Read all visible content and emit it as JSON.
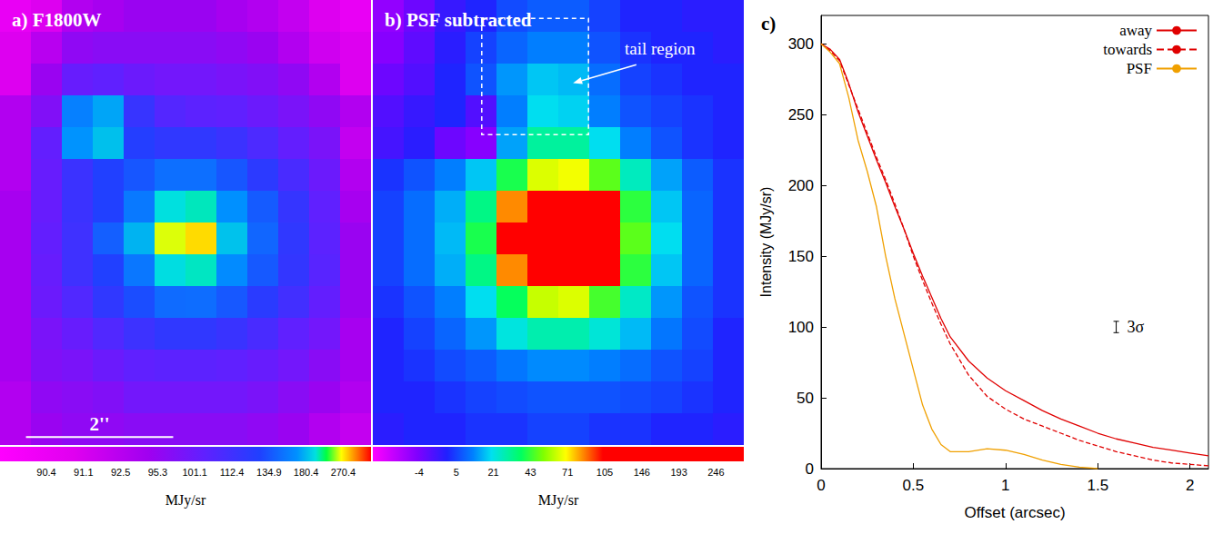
{
  "chart_data": [
    {
      "type": "heatmap",
      "title": "a) F1800W",
      "xlim": [
        0,
        5.04
      ],
      "ylim": [
        0,
        6.05
      ],
      "tick_labels": false,
      "cells": [
        [
          90.5,
          91,
          93,
          94,
          95,
          95,
          95,
          94,
          93,
          92,
          91,
          90.5
        ],
        [
          91,
          92.5,
          96,
          97,
          97,
          97,
          97,
          96,
          95,
          93,
          91.5,
          91
        ],
        [
          91,
          95,
          102,
          104,
          101,
          100,
          100,
          99,
          98,
          96,
          93,
          91
        ],
        [
          93,
          98,
          160,
          175,
          117,
          107,
          105,
          104,
          101,
          99,
          96,
          93
        ],
        [
          93,
          103,
          170,
          185,
          127,
          121,
          121,
          115,
          109,
          103,
          99,
          92
        ],
        [
          93,
          102,
          115,
          129,
          136,
          150,
          150,
          136,
          123,
          110,
          101,
          93
        ],
        [
          94,
          102,
          115,
          129,
          156,
          203,
          209,
          169,
          139,
          118,
          104,
          94
        ],
        [
          94,
          103,
          113,
          141,
          179,
          261,
          276,
          186,
          145,
          121,
          105,
          95
        ],
        [
          94,
          102,
          113,
          129,
          155,
          201,
          208,
          166,
          138,
          119,
          106,
          95
        ],
        [
          94,
          101,
          108,
          121,
          133,
          148,
          149,
          137,
          124,
          112,
          103,
          95
        ],
        [
          94,
          99,
          102,
          108,
          114,
          121,
          121,
          116,
          110,
          104,
          100,
          94
        ],
        [
          94,
          98,
          99,
          101,
          104,
          105,
          105,
          104,
          102,
          100,
          97,
          94
        ],
        [
          93,
          96,
          97,
          98,
          100,
          100,
          100,
          100,
          99,
          97,
          95,
          93
        ],
        [
          93,
          95,
          96,
          96,
          97,
          97,
          97,
          97,
          96,
          95,
          93,
          92
        ]
      ],
      "colorbar": {
        "label": "MJy/sr",
        "range": [
          89.5,
          338
        ],
        "ticks": [
          90.4,
          91.1,
          92.5,
          95.3,
          101.1,
          112.4,
          134.9,
          180.4,
          270.4
        ]
      },
      "scale_bar": {
        "label": "2''",
        "length": 2
      }
    },
    {
      "type": "heatmap",
      "title": "b) PSF subtracted",
      "xlim": [
        0,
        5.04
      ],
      "ylim": [
        0,
        6.05
      ],
      "tick_labels": false,
      "cells": [
        [
          -6,
          -3,
          1,
          3,
          6,
          8,
          8,
          5,
          3,
          3,
          2,
          2
        ],
        [
          -5,
          -2,
          2,
          5,
          9,
          12,
          12,
          7,
          4,
          3,
          3,
          2
        ],
        [
          -3,
          -1,
          3,
          7,
          14,
          18,
          17,
          10,
          5,
          4,
          3,
          3
        ],
        [
          -1,
          1,
          3,
          -1,
          12,
          20,
          19,
          12,
          7,
          5,
          4,
          3
        ],
        [
          0,
          2,
          -3,
          -5,
          15,
          30,
          30,
          20,
          12,
          7,
          4,
          3
        ],
        [
          4,
          7,
          12,
          18,
          40,
          65,
          68,
          48,
          26,
          15,
          8,
          4
        ],
        [
          5,
          10,
          16,
          33,
          85,
          175,
          195,
          105,
          42,
          18,
          9,
          4
        ],
        [
          5,
          10,
          17,
          40,
          115,
          280,
          300,
          140,
          48,
          20,
          9,
          4
        ],
        [
          5,
          10,
          16,
          33,
          85,
          175,
          195,
          105,
          42,
          18,
          9,
          4
        ],
        [
          4,
          7,
          12,
          20,
          38,
          62,
          65,
          45,
          25,
          14,
          7,
          4
        ],
        [
          3,
          5,
          9,
          14,
          22,
          28,
          28,
          23,
          17,
          11,
          6,
          3
        ],
        [
          3,
          4,
          6,
          8,
          11,
          13,
          13,
          12,
          10,
          7,
          5,
          3
        ],
        [
          3,
          3,
          4,
          5,
          6,
          7,
          7,
          7,
          6,
          5,
          4,
          3
        ],
        [
          2,
          3,
          3,
          4,
          4,
          5,
          5,
          4,
          4,
          3,
          3,
          2
        ]
      ],
      "colorbar": {
        "label": "MJy/sr",
        "range": [
          -15,
          300
        ],
        "ticks": [
          -4,
          5,
          21,
          43,
          71,
          105,
          146,
          193,
          246
        ]
      },
      "annotations": [
        {
          "text": "tail region"
        }
      ]
    },
    {
      "type": "line",
      "title": "c)",
      "xlabel": "Offset (arcsec)",
      "ylabel": "Intensity (MJy/sr)",
      "xlim": [
        0,
        2.1
      ],
      "ylim": [
        0,
        320
      ],
      "xticks": [
        0,
        0.5,
        1,
        1.5,
        2
      ],
      "yticks": [
        0,
        50,
        100,
        150,
        200,
        250,
        300
      ],
      "grid": false,
      "legend": "upper right",
      "x": [
        0,
        0.05,
        0.1,
        0.15,
        0.2,
        0.25,
        0.3,
        0.35,
        0.4,
        0.45,
        0.5,
        0.55,
        0.6,
        0.65,
        0.7,
        0.8,
        0.9,
        1.0,
        1.1,
        1.2,
        1.3,
        1.4,
        1.5,
        1.6,
        1.7,
        1.8,
        1.9,
        2.0,
        2.1
      ],
      "series": [
        {
          "name": "away",
          "color": "#e00000",
          "line_style": "solid",
          "values": [
            300,
            296,
            289,
            272,
            252,
            235,
            218,
            202,
            185,
            169,
            152,
            136,
            121,
            106,
            93,
            76,
            64,
            55,
            48,
            41,
            35,
            30,
            25,
            21,
            18,
            15,
            13,
            11,
            9
          ]
        },
        {
          "name": "towards",
          "color": "#e00000",
          "line_style": "dashed",
          "values": [
            300,
            295,
            288,
            271,
            254,
            237,
            220,
            204,
            187,
            169,
            150,
            133,
            117,
            102,
            88,
            66,
            51,
            42,
            35,
            30,
            25,
            20,
            16,
            12,
            9,
            6,
            4,
            3,
            2
          ]
        },
        {
          "name": "PSF",
          "color": "#f0a000",
          "line_style": "solid",
          "values": [
            300,
            294,
            286,
            262,
            232,
            210,
            185,
            150,
            120,
            95,
            70,
            45,
            28,
            17,
            12,
            12,
            14,
            13,
            10,
            6,
            3,
            1,
            0,
            null,
            null,
            null,
            null,
            null,
            null
          ]
        }
      ],
      "error_bar": {
        "x": 1.6,
        "y": 100,
        "error": 4,
        "label": "3σ"
      }
    }
  ]
}
